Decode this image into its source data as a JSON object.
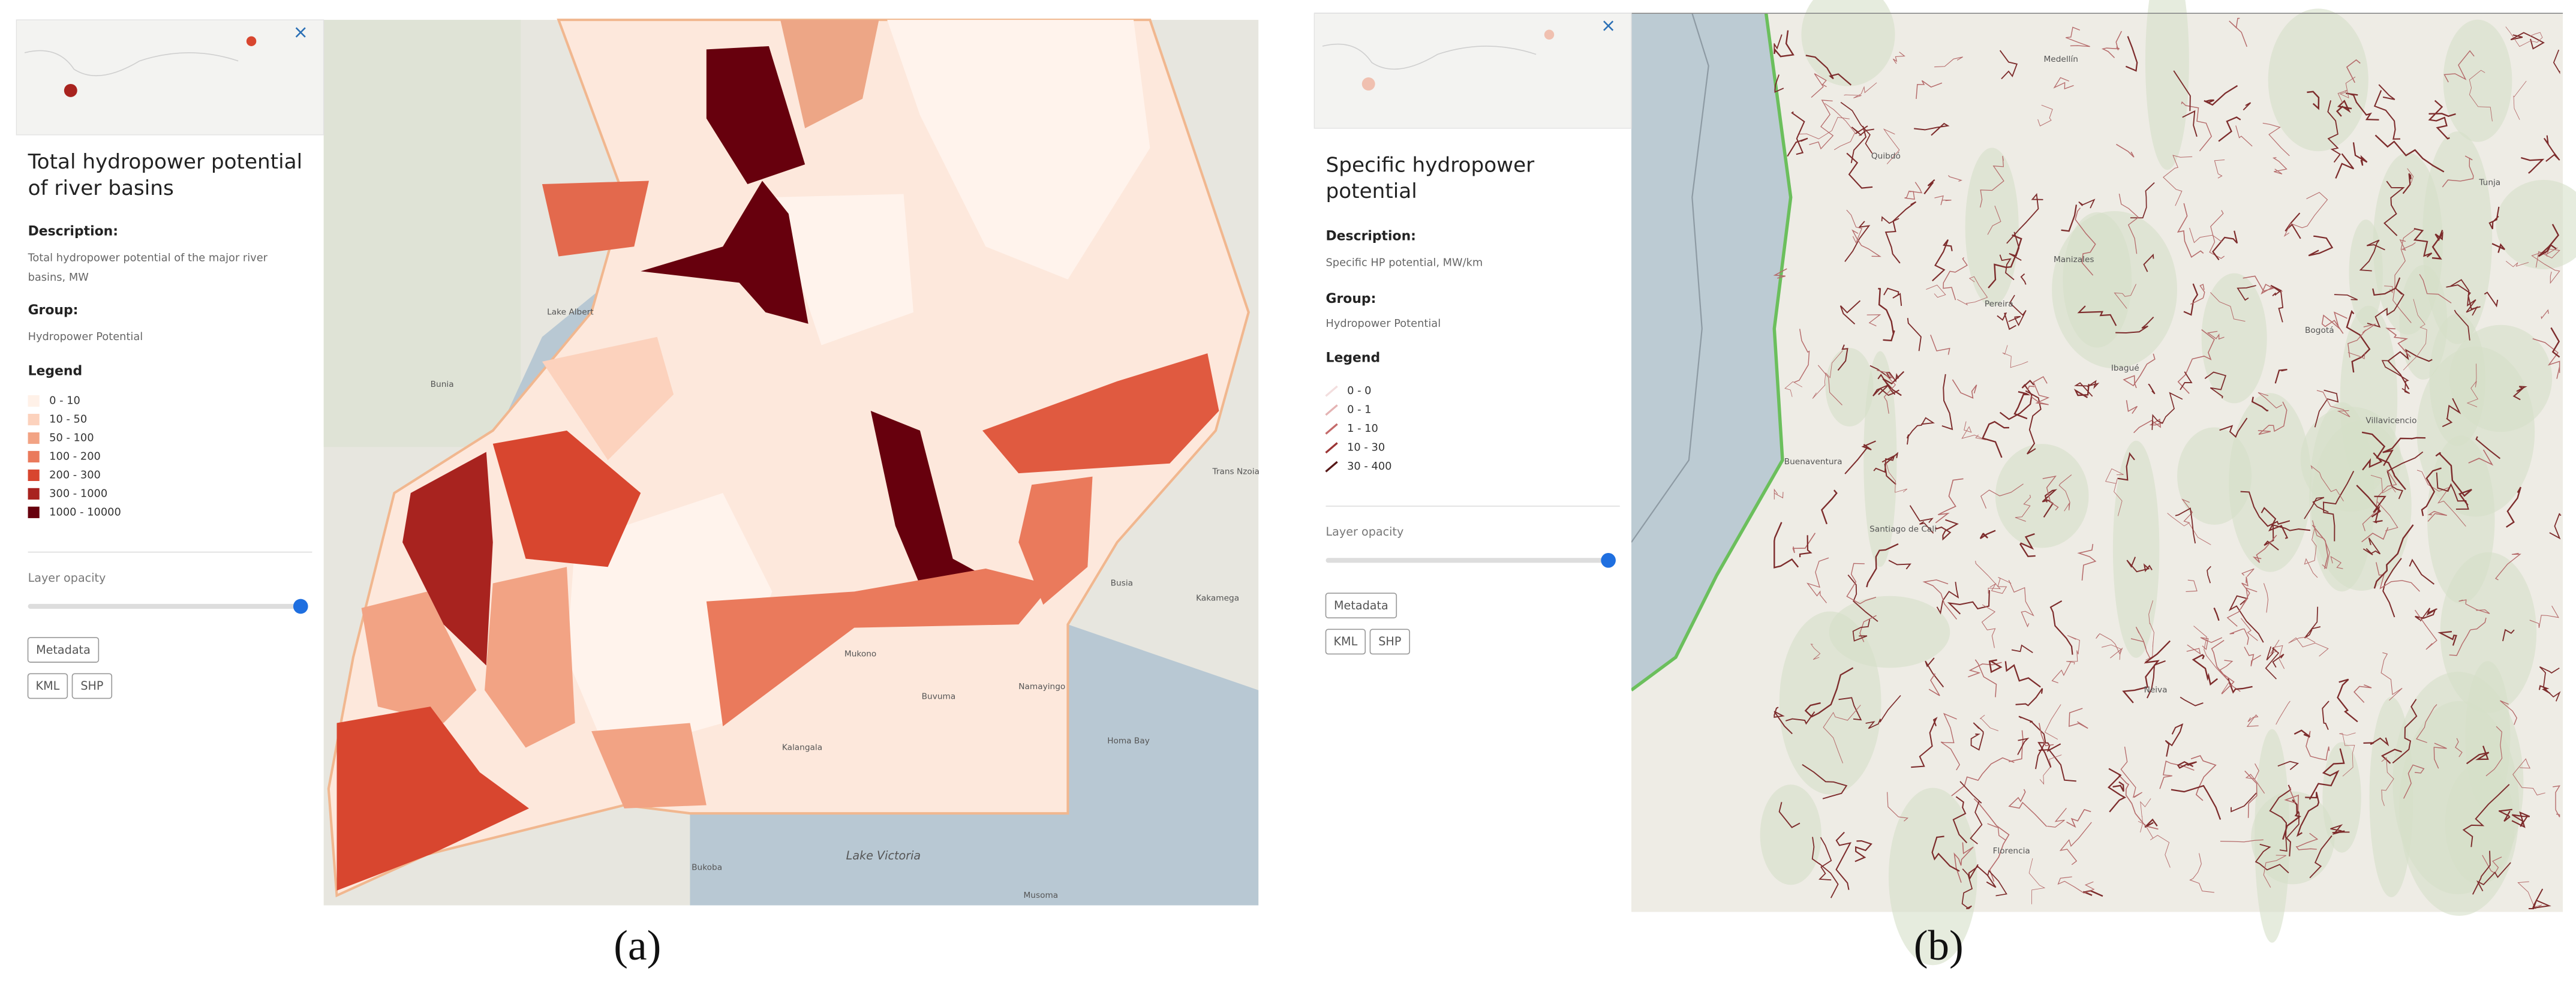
{
  "panels": [
    {
      "caption": "(a)",
      "title_lines": [
        "Total hydropower potential",
        "of river basins"
      ],
      "description_label": "Description:",
      "description_lines": [
        "Total hydropower potential of the major river",
        "basins, MW"
      ],
      "group_label": "Group:",
      "group": "Hydropower Potential",
      "legend_label": "Legend",
      "legend": [
        {
          "label": "0 - 10",
          "color": "#fff1e8"
        },
        {
          "label": "10 - 50",
          "color": "#fcd2bd"
        },
        {
          "label": "50 - 100",
          "color": "#f2a384"
        },
        {
          "label": "100 - 200",
          "color": "#ea7a5c"
        },
        {
          "label": "200 - 300",
          "color": "#d8462f"
        },
        {
          "label": "300 - 1000",
          "color": "#a8231f"
        },
        {
          "label": "1000 - 10000",
          "color": "#67000d"
        }
      ],
      "opacity_label": "Layer opacity",
      "buttons": [
        "Metadata",
        "KML",
        "SHP"
      ],
      "map_labels": [
        "Bunia",
        "Lake Albert",
        "Lake Victoria",
        "Kakamega",
        "Busia",
        "Bukoba",
        "Musoma",
        "Homa Bay",
        "Mukono",
        "Buvuma",
        "Kalangala",
        "Namayingo",
        "Trans Nzoia"
      ]
    },
    {
      "caption": "(b)",
      "title_lines": [
        "Specific hydropower",
        "potential"
      ],
      "description_label": "Description:",
      "description_lines": [
        "Specific HP potential, MW/km"
      ],
      "group_label": "Group:",
      "group": "Hydropower Potential",
      "legend_label": "Legend",
      "legend": [
        {
          "label": "0 - 0",
          "color": "#f3dede"
        },
        {
          "label": "0 - 1",
          "color": "#e4b3b3"
        },
        {
          "label": "1 - 10",
          "color": "#c46a6a"
        },
        {
          "label": "10 - 30",
          "color": "#9b3535"
        },
        {
          "label": "30 - 400",
          "color": "#561717"
        }
      ],
      "opacity_label": "Layer opacity",
      "buttons": [
        "Metadata",
        "KML",
        "SHP"
      ],
      "map_labels": [
        "Medellín",
        "Quibdó",
        "Manizales",
        "Pereira",
        "Ibagué",
        "Bogotá",
        "Villavicencio",
        "Tunja",
        "Buenaventura",
        "Santiago de Cali",
        "Neiva",
        "Florencia"
      ]
    }
  ]
}
